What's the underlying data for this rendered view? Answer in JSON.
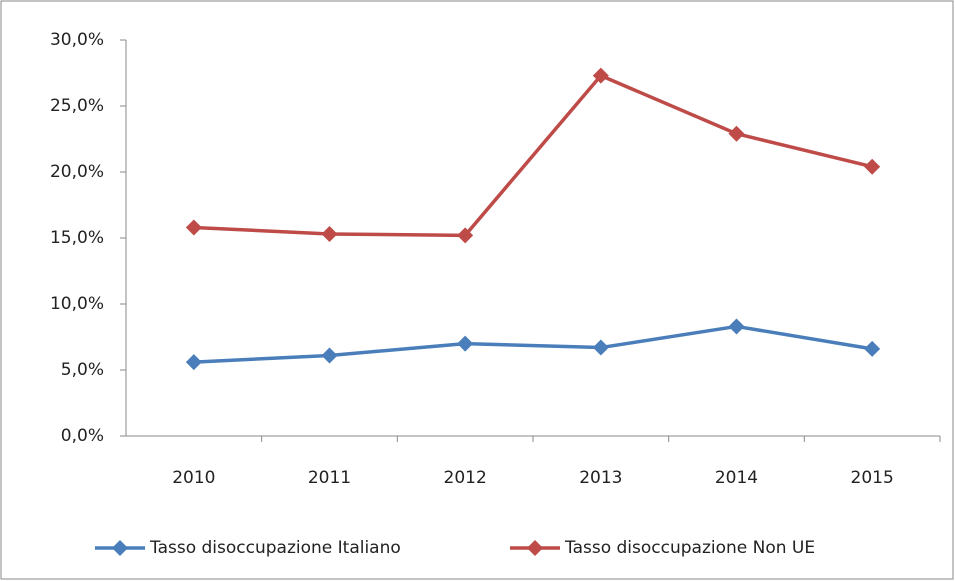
{
  "chart_data": {
    "type": "line",
    "categories": [
      "2010",
      "2011",
      "2012",
      "2013",
      "2014",
      "2015"
    ],
    "series": [
      {
        "name": "Tasso disoccupazione Italiano",
        "color": "#4a7ebb",
        "values": [
          5.6,
          6.1,
          7.0,
          6.7,
          8.3,
          6.6
        ]
      },
      {
        "name": "Tasso disoccupazione Non UE",
        "color": "#be4b48",
        "values": [
          15.8,
          15.3,
          15.2,
          27.3,
          22.9,
          20.4
        ]
      }
    ],
    "ylim": [
      0,
      30
    ],
    "yticks": [
      {
        "value": 0,
        "label": "0,0%"
      },
      {
        "value": 5,
        "label": "5,0%"
      },
      {
        "value": 10,
        "label": "10,0%"
      },
      {
        "value": 15,
        "label": "15,0%"
      },
      {
        "value": 20,
        "label": "20,0%"
      },
      {
        "value": 25,
        "label": "25,0%"
      },
      {
        "value": 30,
        "label": "30,0%"
      }
    ],
    "grid": false,
    "legend": "bottom"
  }
}
